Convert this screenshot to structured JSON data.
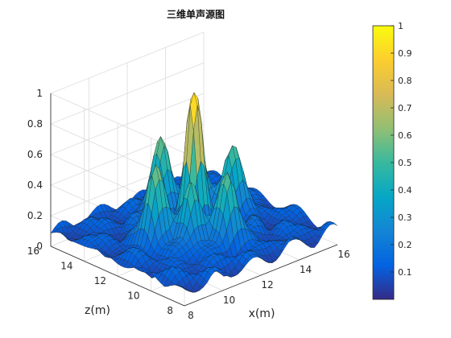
{
  "chart_data": {
    "type": "surface3d",
    "title": "三维单声源图",
    "xlabel": "x(m)",
    "ylabel": "z(m)",
    "zlabel": "",
    "x_ticks": [
      8,
      10,
      12,
      14,
      16
    ],
    "y_ticks": [
      8,
      10,
      12,
      14,
      16
    ],
    "z_ticks": [
      0,
      0.2,
      0.4,
      0.6,
      0.8,
      1
    ],
    "z_tick_labels": [
      "0",
      "0.2",
      "0.4",
      "0.6",
      "0.8",
      "1"
    ],
    "xlim": [
      8,
      16
    ],
    "ylim": [
      8,
      16
    ],
    "zlim": [
      0,
      1
    ],
    "grid": true,
    "colormap": "parula",
    "colorbar": {
      "placement": "right",
      "range": [
        0,
        1
      ],
      "ticks": [
        0.1,
        0.2,
        0.3,
        0.4,
        0.5,
        0.6,
        0.7,
        0.8,
        0.9,
        1
      ],
      "tick_labels": [
        "0.1",
        "0.2",
        "0.3",
        "0.4",
        "0.5",
        "0.6",
        "0.7",
        "0.8",
        "0.9",
        "1"
      ]
    },
    "peak": {
      "x": 12,
      "z": 12,
      "value": 1.0
    },
    "secondary_peaks": [
      {
        "x": 10,
        "z": 12,
        "value": 0.55
      },
      {
        "x": 12,
        "z": 14,
        "value": 0.55
      },
      {
        "x": 14,
        "z": 12,
        "value": 0.48
      },
      {
        "x": 12,
        "z": 10,
        "value": 0.48
      },
      {
        "x": 10.8,
        "z": 10.8,
        "value": 0.42
      },
      {
        "x": 13.2,
        "z": 13.2,
        "value": 0.4
      }
    ],
    "edge_level": 0.08
  }
}
